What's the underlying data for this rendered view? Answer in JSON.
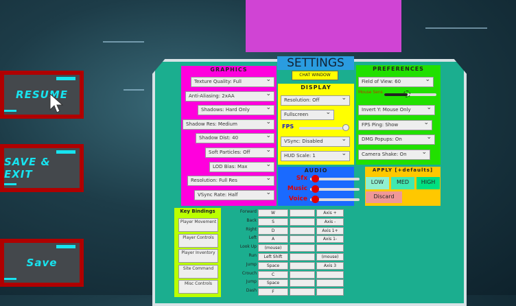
{
  "menu": {
    "resume": "RESUME",
    "save_exit": "SAVE & EXIT",
    "save": "Save"
  },
  "settings": {
    "title": "SETTINGS",
    "chat_button": "CHAT WINDOW",
    "graphics": {
      "title": "GRAPHICS",
      "items": [
        "Texture Quality: Full",
        "Anti-Aliasing: 2xAA",
        "Shadows: Hard Only",
        "Shadow Res: Medium",
        "Shadow Dist: 40",
        "Soft Particles: Off",
        "LOD Bias: Max",
        "Resolution: Full Res",
        "VSync Rate: Half"
      ]
    },
    "display": {
      "title": "DISPLAY",
      "items": [
        "Resolution: Off",
        "Fullscreen"
      ],
      "fps_label": "FPS",
      "fps_value": 0.95,
      "items2": [
        "VSync: Disabled",
        "HUD Scale: 1"
      ]
    },
    "audio": {
      "title": "AUDIO",
      "channels": [
        {
          "label": "Sfx",
          "value": 0.1
        },
        {
          "label": "Music",
          "value": 0.1
        },
        {
          "label": "Voice",
          "value": 0.1
        }
      ]
    },
    "preferences": {
      "title": "PREFERENCES",
      "items": [
        "Field of View: 60"
      ],
      "sens_label": "Mouse Sens",
      "sens_value": 0.55,
      "items2": [
        "Invert Y: Mouse Only",
        "FPS Ping: Show",
        "DMG Popups: On",
        "Camera Shake: On"
      ]
    },
    "apply": {
      "title": "APPLY [+defaults]",
      "low": "LOW",
      "med": "MED",
      "high": "HIGH",
      "discard": "Discard",
      "colors": {
        "low": "#90f0d0",
        "med": "#40e8b0",
        "high": "#00e080",
        "discard": "#f09898"
      }
    },
    "keybindings": {
      "title": "Key Bindings",
      "categories": [
        "Player Movement",
        "Player Controls",
        "Player Inventory",
        "Site Command",
        "Misc Controls"
      ],
      "rows": [
        {
          "action": "Forward",
          "key": "W",
          "alt": "",
          "axis": "Axis +"
        },
        {
          "action": "Back",
          "key": "S",
          "alt": "",
          "axis": "Axis -"
        },
        {
          "action": "Right",
          "key": "D",
          "alt": "",
          "axis": "Axis 1+"
        },
        {
          "action": "Left",
          "key": "A",
          "alt": "",
          "axis": "Axis 1-"
        },
        {
          "action": "Look Up",
          "key": "(mouse)",
          "alt": "",
          "axis": ""
        },
        {
          "action": "Run",
          "key": "Left Shift",
          "alt": "",
          "axis": "(mouse)"
        },
        {
          "action": "Jump",
          "key": "Space",
          "alt": "",
          "axis": "Axis 3"
        },
        {
          "action": "Crouch",
          "key": "C",
          "alt": "",
          "axis": ""
        },
        {
          "action": "Jump",
          "key": "Space",
          "alt": "",
          "axis": ""
        },
        {
          "action": "Dash",
          "key": "F",
          "alt": "",
          "axis": ""
        }
      ]
    }
  }
}
